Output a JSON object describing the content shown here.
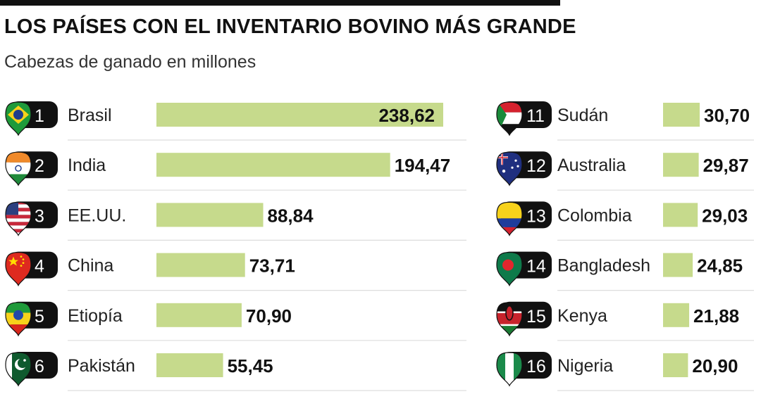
{
  "title": "LOS PAÍSES CON EL INVENTARIO BOVINO MÁS GRANDE",
  "subtitle": "Cabezas de ganado en millones",
  "colors": {
    "bar": "#c6da8c",
    "text": "#111111",
    "divider": "#dddddd",
    "badge": "#111111"
  },
  "chart_data": {
    "type": "bar",
    "orientation": "horizontal",
    "title": "LOS PAÍSES CON EL INVENTARIO BOVINO MÁS GRANDE",
    "subtitle": "Cabezas de ganado en millones",
    "unit": "millones",
    "categories": [
      "Brasil",
      "India",
      "EE.UU.",
      "China",
      "Etiopía",
      "Pakistán",
      "Sudán",
      "Australia",
      "Colombia",
      "Bangladesh",
      "Kenya",
      "Nigeria"
    ],
    "values": [
      238.62,
      194.47,
      88.84,
      73.71,
      70.9,
      55.45,
      30.7,
      29.87,
      29.03,
      24.85,
      21.88,
      20.9
    ],
    "items": [
      {
        "rank": "1",
        "country": "Brasil",
        "value": 238.62,
        "label": "238,62",
        "flag": "brazil-flag"
      },
      {
        "rank": "2",
        "country": "India",
        "value": 194.47,
        "label": "194,47",
        "flag": "india-flag"
      },
      {
        "rank": "3",
        "country": "EE.UU.",
        "value": 88.84,
        "label": "88,84",
        "flag": "usa-flag"
      },
      {
        "rank": "4",
        "country": "China",
        "value": 73.71,
        "label": "73,71",
        "flag": "china-flag"
      },
      {
        "rank": "5",
        "country": "Etiopía",
        "value": 70.9,
        "label": "70,90",
        "flag": "ethiopia-flag"
      },
      {
        "rank": "6",
        "country": "Pakistán",
        "value": 55.45,
        "label": "55,45",
        "flag": "pakistan-flag"
      },
      {
        "rank": "11",
        "country": "Sudán",
        "value": 30.7,
        "label": "30,70",
        "flag": "sudan-flag"
      },
      {
        "rank": "12",
        "country": "Australia",
        "value": 29.87,
        "label": "29,87",
        "flag": "australia-flag"
      },
      {
        "rank": "13",
        "country": "Colombia",
        "value": 29.03,
        "label": "29,03",
        "flag": "colombia-flag"
      },
      {
        "rank": "14",
        "country": "Bangladesh",
        "value": 24.85,
        "label": "24,85",
        "flag": "bangladesh-flag"
      },
      {
        "rank": "15",
        "country": "Kenya",
        "value": 21.88,
        "label": "21,88",
        "flag": "kenya-flag"
      },
      {
        "rank": "16",
        "country": "Nigeria",
        "value": 20.9,
        "label": "20,90",
        "flag": "nigeria-flag"
      }
    ]
  }
}
